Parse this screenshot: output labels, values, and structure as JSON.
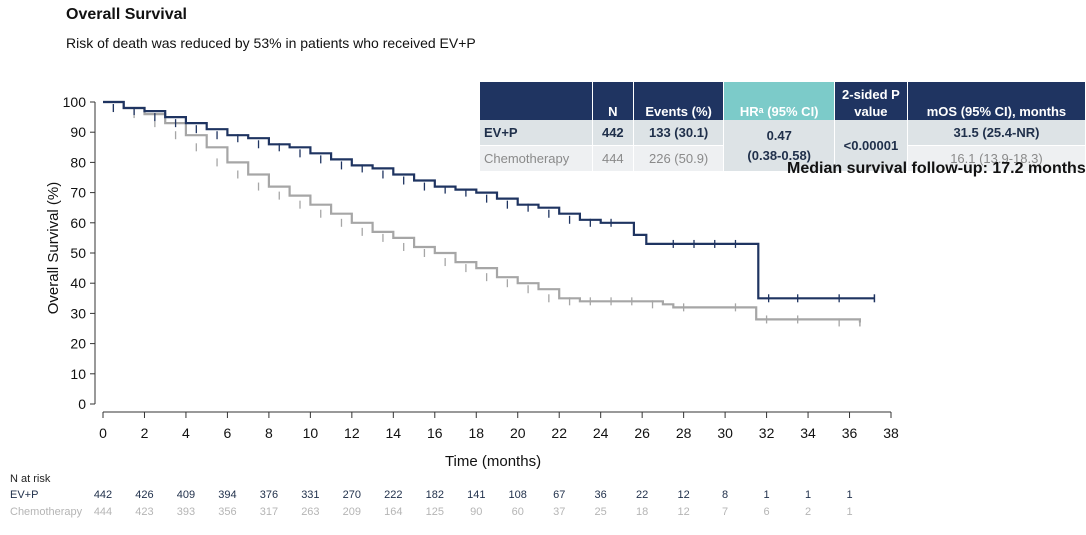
{
  "title": "Overall Survival",
  "subtitle": "Risk of death was reduced by 53% in patients who received EV+P",
  "chart_data": {
    "type": "line",
    "title": "",
    "xlabel": "Time (months)",
    "ylabel": "Overall Survival (%)",
    "xlim": [
      0,
      38
    ],
    "ylim": [
      0,
      100
    ],
    "x_ticks": [
      "0",
      "2",
      "4",
      "6",
      "8",
      "10",
      "12",
      "14",
      "16",
      "18",
      "20",
      "22",
      "24",
      "26",
      "28",
      "30",
      "32",
      "34",
      "36",
      "38"
    ],
    "y_ticks": [
      "0",
      "10",
      "20",
      "30",
      "40",
      "50",
      "60",
      "70",
      "80",
      "90",
      "100"
    ],
    "series": [
      {
        "name": "EV+P",
        "color": "#1f3461",
        "points": [
          [
            0,
            100
          ],
          [
            1,
            98
          ],
          [
            2,
            97
          ],
          [
            3,
            95
          ],
          [
            4,
            93
          ],
          [
            5,
            91
          ],
          [
            6,
            89
          ],
          [
            7,
            88
          ],
          [
            8,
            86
          ],
          [
            9,
            85
          ],
          [
            10,
            83
          ],
          [
            11,
            81
          ],
          [
            12,
            79
          ],
          [
            13,
            78
          ],
          [
            14,
            76
          ],
          [
            15,
            74
          ],
          [
            16,
            72
          ],
          [
            17,
            71
          ],
          [
            18,
            70
          ],
          [
            19,
            68
          ],
          [
            20,
            66
          ],
          [
            21,
            65
          ],
          [
            22,
            63
          ],
          [
            23,
            61
          ],
          [
            24,
            60
          ],
          [
            25,
            60
          ],
          [
            25.6,
            56
          ],
          [
            26.2,
            53
          ],
          [
            27,
            53
          ],
          [
            28,
            53
          ],
          [
            29,
            53
          ],
          [
            30,
            53
          ],
          [
            31.5,
            53
          ],
          [
            31.6,
            35
          ],
          [
            33,
            35
          ],
          [
            35,
            35
          ],
          [
            37.2,
            35
          ]
        ]
      },
      {
        "name": "Chemotherapy",
        "color": "#a6a6a6",
        "points": [
          [
            0,
            100
          ],
          [
            1,
            98
          ],
          [
            2,
            96
          ],
          [
            3,
            93
          ],
          [
            4,
            89
          ],
          [
            5,
            85
          ],
          [
            6,
            80
          ],
          [
            7,
            76
          ],
          [
            8,
            72
          ],
          [
            9,
            69
          ],
          [
            10,
            66
          ],
          [
            11,
            63
          ],
          [
            12,
            60
          ],
          [
            13,
            57
          ],
          [
            14,
            55
          ],
          [
            15,
            52
          ],
          [
            16,
            50
          ],
          [
            17,
            47
          ],
          [
            18,
            45
          ],
          [
            19,
            42
          ],
          [
            20,
            40
          ],
          [
            21,
            38
          ],
          [
            22,
            35
          ],
          [
            23,
            34
          ],
          [
            24,
            34
          ],
          [
            25,
            34
          ],
          [
            26,
            34
          ],
          [
            27,
            33
          ],
          [
            27.5,
            32
          ],
          [
            30,
            32
          ],
          [
            31.3,
            32
          ],
          [
            31.5,
            28
          ],
          [
            33,
            28
          ],
          [
            35,
            28
          ],
          [
            36.5,
            27
          ]
        ]
      }
    ]
  },
  "table": {
    "headers": [
      "",
      "N",
      "Events (%)",
      "HRᵃ (95% CI)",
      "2-sided P value",
      "mOS (95% CI), months"
    ],
    "rows": [
      {
        "label": "EV+P",
        "n": "442",
        "events": "133 (30.1)",
        "mos": "31.5 (25.4-NR)"
      },
      {
        "label": "Chemotherapy",
        "n": "444",
        "events": "226 (50.9)",
        "mos": "16.1 (13.9-18.3)"
      }
    ],
    "hr_value": "0.47",
    "hr_ci": "(0.38-0.58)",
    "p_value": "<0.00001"
  },
  "followup_note": "Median survival follow-up: 17.2 months",
  "risk_table": {
    "title": "N at risk",
    "rows": [
      {
        "label": "EV+P",
        "color": "#1f2f4a",
        "values": [
          "442",
          "426",
          "409",
          "394",
          "376",
          "331",
          "270",
          "222",
          "182",
          "141",
          "108",
          "67",
          "36",
          "22",
          "12",
          "8",
          "1",
          "1",
          "1"
        ]
      },
      {
        "label": "Chemotherapy",
        "color": "#b5b5b5",
        "values": [
          "444",
          "423",
          "393",
          "356",
          "317",
          "263",
          "209",
          "164",
          "125",
          "90",
          "60",
          "37",
          "25",
          "18",
          "12",
          "7",
          "6",
          "2",
          "1"
        ]
      }
    ]
  }
}
